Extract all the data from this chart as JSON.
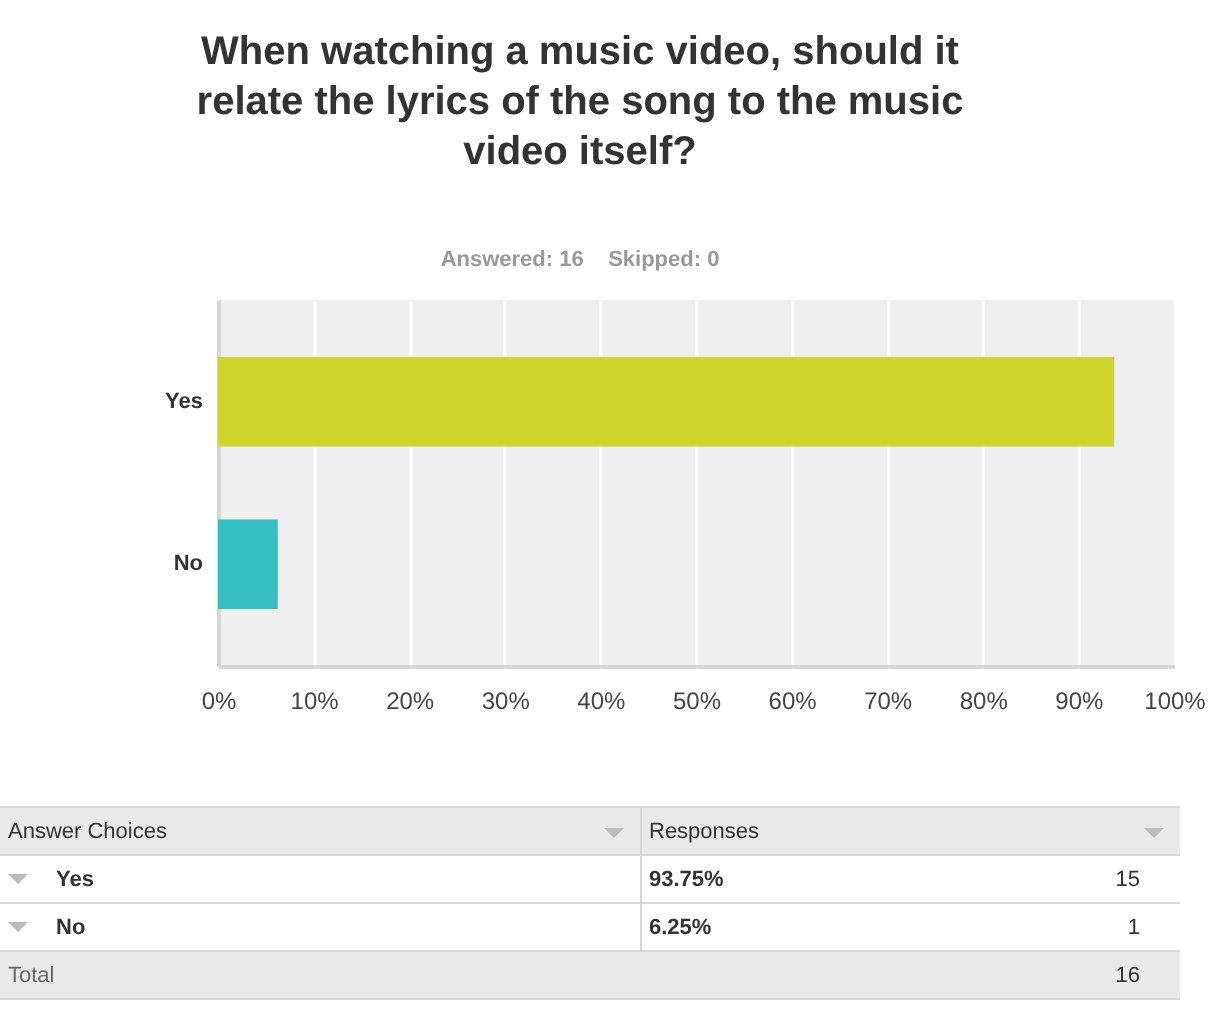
{
  "chart_data": {
    "type": "bar",
    "orientation": "horizontal",
    "title": "When watching a music video, should it relate the lyrics of the song to the music video itself?",
    "subtitle": "Answered: 16    Skipped: 0",
    "categories": [
      "Yes",
      "No"
    ],
    "values": [
      93.75,
      6.25
    ],
    "colors": [
      "#cfd52a",
      "#35bfc1"
    ],
    "xlim": [
      0,
      100
    ],
    "xticks": [
      {
        "value": 0,
        "label": "0%"
      },
      {
        "value": 10,
        "label": "10%"
      },
      {
        "value": 20,
        "label": "20%"
      },
      {
        "value": 30,
        "label": "30%"
      },
      {
        "value": 40,
        "label": "40%"
      },
      {
        "value": 50,
        "label": "50%"
      },
      {
        "value": 60,
        "label": "60%"
      },
      {
        "value": 70,
        "label": "70%"
      },
      {
        "value": 80,
        "label": "80%"
      },
      {
        "value": 90,
        "label": "90%"
      },
      {
        "value": 100,
        "label": "100%"
      }
    ],
    "grid": "x",
    "annotations": [
      "Answer Choices",
      "Responses",
      "93.75%",
      "15",
      "6.25%",
      "1",
      "Total",
      "16"
    ]
  }
}
